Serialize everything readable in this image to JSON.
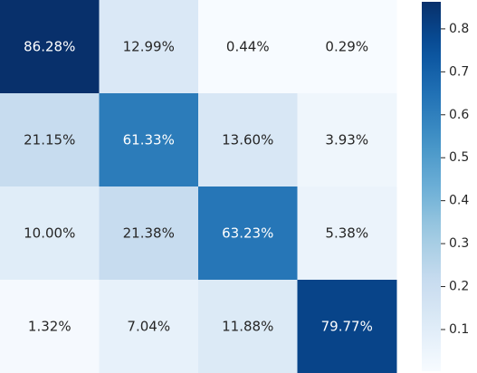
{
  "chart_data": {
    "type": "heatmap",
    "title": "",
    "xlabel": "",
    "ylabel": "",
    "x_tick_labels": [],
    "y_tick_labels": [],
    "values": [
      [
        86.28,
        12.99,
        0.44,
        0.29
      ],
      [
        21.15,
        61.33,
        13.6,
        3.93
      ],
      [
        10.0,
        21.38,
        63.23,
        5.38
      ],
      [
        1.32,
        7.04,
        11.88,
        79.77
      ]
    ],
    "cell_labels": [
      [
        "86.28%",
        "12.99%",
        "0.44%",
        "0.29%"
      ],
      [
        "21.15%",
        "61.33%",
        "13.60%",
        "3.93%"
      ],
      [
        "10.00%",
        "21.38%",
        "63.23%",
        "5.38%"
      ],
      [
        "1.32%",
        "7.04%",
        "11.88%",
        "79.77%"
      ]
    ],
    "colormap": "Blues",
    "colorbar": {
      "range": [
        0.003,
        0.863
      ],
      "ticks": [
        0.1,
        0.2,
        0.3,
        0.4,
        0.5,
        0.6,
        0.7,
        0.8
      ],
      "tick_labels": [
        "0.1",
        "0.2",
        "0.3",
        "0.4",
        "0.5",
        "0.6",
        "0.7",
        "0.8"
      ]
    },
    "colors": {
      "text_dark": "#262626",
      "text_light": "#ffffff"
    }
  }
}
